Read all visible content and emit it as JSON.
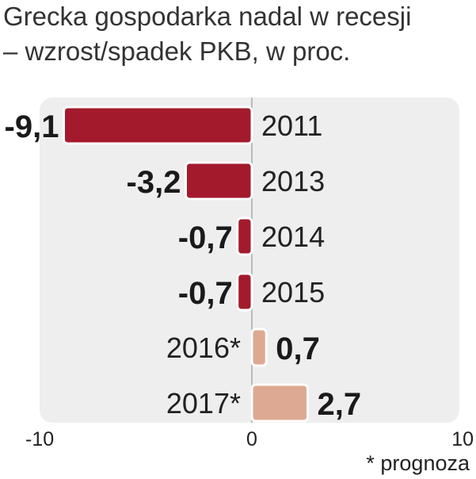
{
  "chart_data": {
    "type": "bar",
    "orientation": "horizontal",
    "title": "Grecka gospodarka nadal w recesji",
    "subtitle": "– wzrost/spadek PKB, w proc.",
    "categories": [
      "2011",
      "2013",
      "2014",
      "2015",
      "2016*",
      "2017*"
    ],
    "values": [
      -9.1,
      -3.2,
      -0.7,
      -0.7,
      0.7,
      2.7
    ],
    "value_labels": [
      "-9,1",
      "-3,2",
      "-0,7",
      "-0,7",
      "0,7",
      "2,7"
    ],
    "forecast": [
      false,
      false,
      false,
      false,
      true,
      true
    ],
    "xlim": [
      -10,
      10
    ],
    "x_ticks": [
      -10,
      0,
      10
    ],
    "x_tick_labels": [
      "-10",
      "0",
      "10"
    ],
    "grid": false,
    "colors": {
      "actual": "#a31a2c",
      "forecast": "#dea992",
      "panel": "#eeeeee",
      "axis": "#aaaaaa"
    }
  },
  "footnote": "* prognoza"
}
